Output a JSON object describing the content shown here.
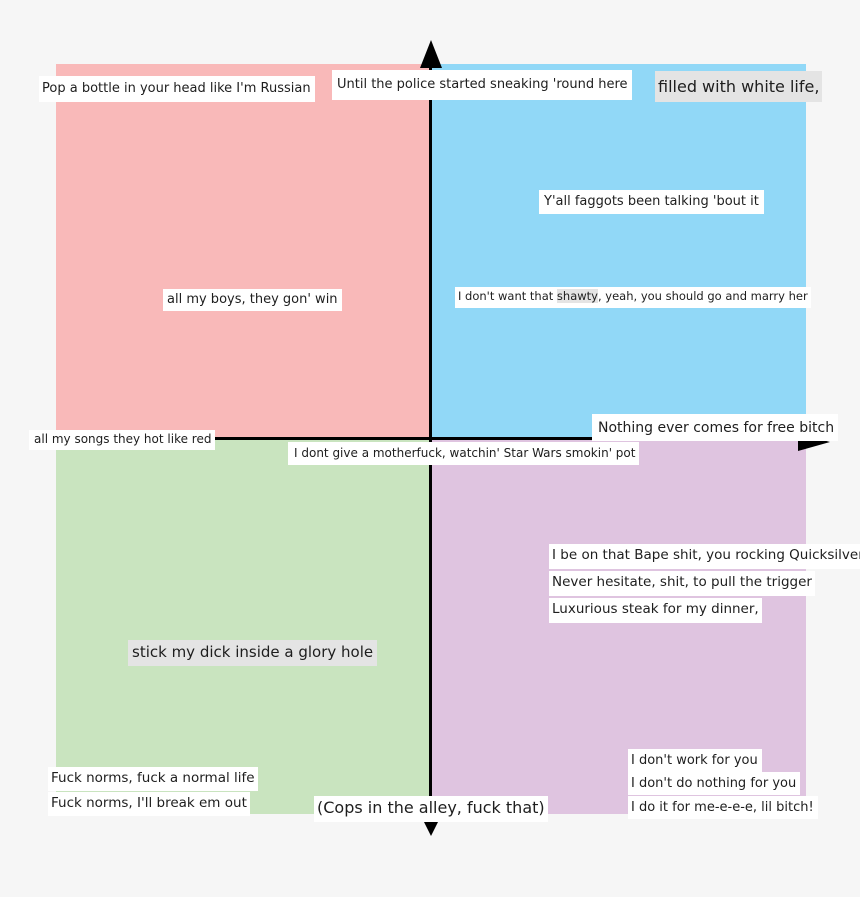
{
  "colors": {
    "background": "#f6f6f6",
    "top_left": "#f9b9b9",
    "top_right": "#91d8f7",
    "bottom_left": "#c9e4bf",
    "bottom_right": "#dfc4e0",
    "axis": "#000000",
    "label_bg": "#ffffff"
  },
  "labels": {
    "pop_bottle": "Pop a bottle in your head like I'm Russian",
    "police": "Until the police started sneaking 'round here",
    "white_life": "filled with white life,",
    "yall": "Y'all faggots been talking 'bout it",
    "all_boys": "all my boys, they gon' win",
    "dont_want_pre": "I don't want that ",
    "dont_want_hl": "shawty",
    "dont_want_post": ", yeah, you should go and marry her",
    "nothing_free": "Nothing ever comes for free bitch",
    "hot_songs": "all my songs they hot like red",
    "motherfuck": "I dont give a motherfuck, watchin' Star Wars smokin' pot",
    "bape": "I be on that Bape shit, you rocking Quicksilver",
    "hesitate": "Never hesitate, shit, to pull the trigger",
    "steak": "Luxurious steak for my dinner,",
    "glory_hole": "stick my dick inside a glory hole",
    "norms1": "Fuck norms, fuck a normal life",
    "norms2": "Fuck norms, I'll break em out",
    "cops": "(Cops in the alley, fuck that)",
    "work": "I don't work for you",
    "nothing_for_you": "I don't do nothing for you",
    "for_me": "I do it for me-e-e-e, lil bitch!"
  }
}
